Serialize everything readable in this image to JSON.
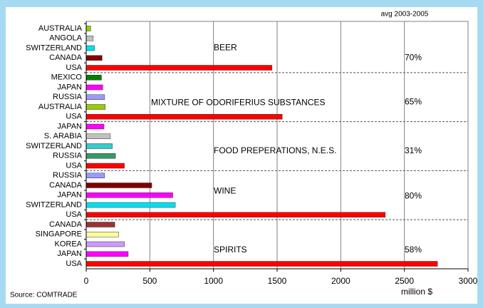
{
  "chart_data": {
    "type": "bar",
    "orientation": "horizontal",
    "annotation": "avg 2003-2005",
    "xlabel": "million $",
    "source": "Source: COMTRADE",
    "xlim": [
      0,
      3000
    ],
    "xticks": [
      0,
      500,
      1000,
      1500,
      2000,
      2500,
      3000
    ],
    "grid": true,
    "groups": [
      {
        "name": "BEER",
        "share": "70%",
        "categories": [
          "AUSTRALIA",
          "ANGOLA",
          "SWITZERLAND",
          "CANADA",
          "USA"
        ],
        "values": [
          35,
          55,
          65,
          125,
          1460
        ],
        "colors": [
          "#99cc00",
          "#c0c0c0",
          "#00e0f0",
          "#800000",
          "#ff0000"
        ]
      },
      {
        "name": "MIXTURE OF ODORIFERIUS SUBSTANCES",
        "share": "65%",
        "categories": [
          "MEXICO",
          "JAPAN",
          "RUSSIA",
          "AUSTRALIA",
          "USA"
        ],
        "values": [
          120,
          130,
          145,
          150,
          1540
        ],
        "colors": [
          "#008000",
          "#ff00ff",
          "#9999ff",
          "#99cc00",
          "#ff0000"
        ]
      },
      {
        "name": "FOOD PREPERATIONS, N.E.S.",
        "share": "31%",
        "categories": [
          "JAPAN",
          "S. ARABIA",
          "SWITZERLAND",
          "RUSSIA",
          "USA"
        ],
        "values": [
          140,
          190,
          205,
          230,
          300
        ],
        "colors": [
          "#ff00ff",
          "#c0c0c0",
          "#33cccc",
          "#339966",
          "#ff0000"
        ]
      },
      {
        "name": "WINE",
        "share": "80%",
        "categories": [
          "RUSSIA",
          "CANADA",
          "JAPAN",
          "SWITZERLAND",
          "USA"
        ],
        "values": [
          145,
          515,
          680,
          700,
          2350
        ],
        "colors": [
          "#9999ff",
          "#800000",
          "#ff00ff",
          "#00e0f0",
          "#ff0000"
        ]
      },
      {
        "name": "SPIRITS",
        "share": "58%",
        "categories": [
          "CANADA",
          "SINGAPORE",
          "KOREA",
          "JAPAN",
          "USA"
        ],
        "values": [
          225,
          255,
          300,
          330,
          2760
        ],
        "colors": [
          "#993333",
          "#ffff99",
          "#cc99ff",
          "#ff00ff",
          "#ff0000"
        ]
      }
    ]
  }
}
